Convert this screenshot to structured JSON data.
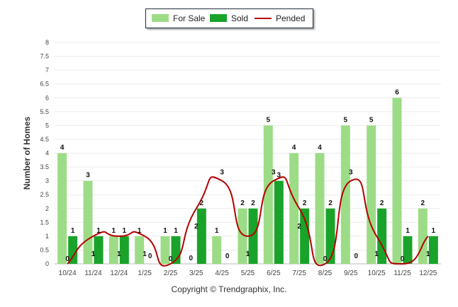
{
  "chart_data": {
    "type": "bar",
    "title": "",
    "xlabel": "",
    "ylabel": "Number of Homes",
    "ylim": [
      0,
      8
    ],
    "ytick_step": 0.5,
    "categories": [
      "10/24",
      "11/24",
      "12/24",
      "1/25",
      "2/25",
      "3/25",
      "4/25",
      "5/25",
      "6/25",
      "7/25",
      "8/25",
      "9/25",
      "10/25",
      "11/25",
      "12/25"
    ],
    "series": [
      {
        "name": "For Sale",
        "kind": "bar",
        "color": "#9ddc86",
        "values": [
          4,
          3,
          1,
          1,
          1,
          0,
          1,
          2,
          5,
          4,
          4,
          5,
          5,
          6,
          2
        ]
      },
      {
        "name": "Sold",
        "kind": "bar",
        "color": "#1aa32a",
        "values": [
          1,
          1,
          1,
          0,
          1,
          2,
          0,
          2,
          3,
          2,
          2,
          0,
          2,
          1,
          1
        ]
      },
      {
        "name": "Pended",
        "kind": "line",
        "color": "#b50000",
        "values": [
          0,
          1,
          1,
          1,
          0,
          2,
          3,
          1,
          3,
          2,
          0,
          3,
          1,
          0,
          1
        ]
      }
    ]
  },
  "copyright": "Copyright © Trendgraphix, Inc."
}
